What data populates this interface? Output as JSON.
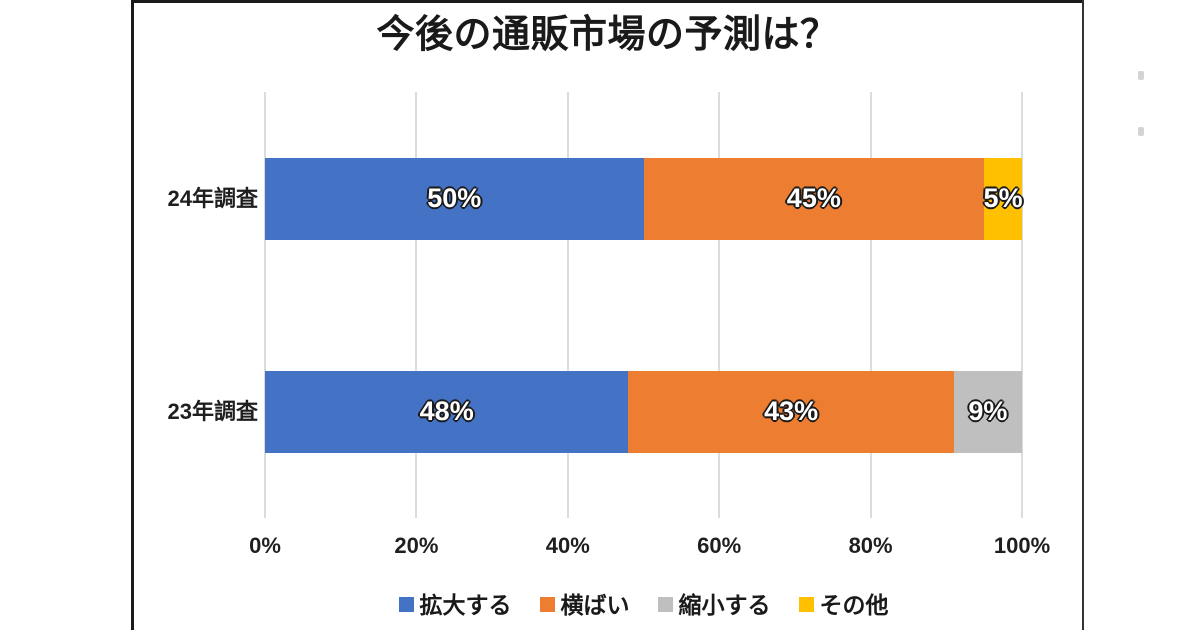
{
  "title": "今後の通販市場の予測は？",
  "colors": {
    "expand_blue": "#4472C4",
    "flat_orange": "#ED7D31",
    "shrink_gray": "#BFBFBF",
    "other_yellow": "#FFC000",
    "gridline": "#DCDCDC",
    "text": "#1F1F1F",
    "frame_border": "#1A1A1A"
  },
  "chart_data": {
    "type": "bar",
    "orientation": "horizontal",
    "stacked": true,
    "title": "今後の通販市場の予測は？",
    "categories": [
      "24年調査",
      "23年調査"
    ],
    "series": [
      {
        "name": "拡大する",
        "color": "#4472C4",
        "values": [
          50,
          48
        ]
      },
      {
        "name": "横ばい",
        "color": "#ED7D31",
        "values": [
          45,
          43
        ]
      },
      {
        "name": "縮小する",
        "color": "#BFBFBF",
        "values": [
          0,
          9
        ]
      },
      {
        "name": "その他",
        "color": "#FFC000",
        "values": [
          5,
          0
        ]
      }
    ],
    "data_labels": [
      [
        "50%",
        "45%",
        "5%"
      ],
      [
        "48%",
        "43%",
        "9%"
      ]
    ],
    "x_ticks": [
      "0%",
      "20%",
      "40%",
      "60%",
      "80%",
      "100%"
    ],
    "xlim": [
      0,
      100
    ],
    "grid": true,
    "legend_position": "bottom"
  }
}
